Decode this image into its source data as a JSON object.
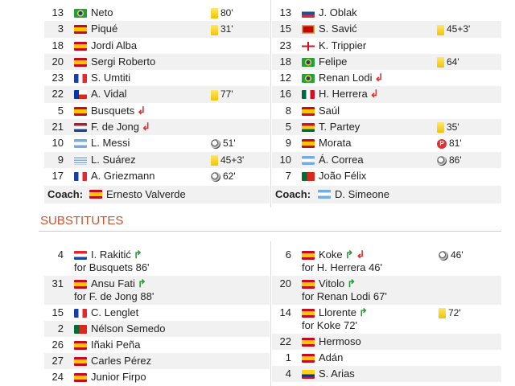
{
  "home": {
    "players": [
      {
        "num": "13",
        "flag": "br",
        "name": "Neto",
        "event": {
          "type": "yellow",
          "minute": "80'"
        }
      },
      {
        "num": "3",
        "flag": "es",
        "name": "Piqué",
        "event": {
          "type": "yellow",
          "minute": "31'"
        }
      },
      {
        "num": "18",
        "flag": "es",
        "name": "Jordi Alba"
      },
      {
        "num": "20",
        "flag": "es",
        "name": "Sergi Roberto"
      },
      {
        "num": "23",
        "flag": "fr",
        "name": "S. Umtiti"
      },
      {
        "num": "22",
        "flag": "cl",
        "name": "A. Vidal",
        "event": {
          "type": "yellow",
          "minute": "77'"
        }
      },
      {
        "num": "5",
        "flag": "es",
        "name": "Busquets",
        "subs": [
          "out"
        ]
      },
      {
        "num": "21",
        "flag": "nl",
        "name": "F. de Jong",
        "subs": [
          "out"
        ]
      },
      {
        "num": "10",
        "flag": "ar",
        "name": "L. Messi",
        "event": {
          "type": "goal",
          "minute": "51'"
        }
      },
      {
        "num": "9",
        "flag": "uy",
        "name": "L. Suárez",
        "event": {
          "type": "yellow",
          "minute": "45+3'"
        }
      },
      {
        "num": "17",
        "flag": "fr",
        "name": "A. Griezmann",
        "event": {
          "type": "goal",
          "minute": "62'"
        }
      }
    ],
    "coach_label": "Coach:",
    "coach": {
      "flag": "es",
      "name": "Ernesto Valverde"
    },
    "substitutes": [
      {
        "num": "4",
        "flag": "hr",
        "name": "I. Rakitić",
        "subs": [
          "in"
        ],
        "for": "for Busquets 86'"
      },
      {
        "num": "31",
        "flag": "es",
        "name": "Ansu Fati",
        "subs": [
          "in"
        ],
        "for": "for F. de Jong 88'"
      },
      {
        "num": "15",
        "flag": "fr",
        "name": "C. Lenglet"
      },
      {
        "num": "2",
        "flag": "pt",
        "name": "Nélson Semedo"
      },
      {
        "num": "26",
        "flag": "es",
        "name": "Iñaki Peña"
      },
      {
        "num": "27",
        "flag": "es",
        "name": "Carles Pérez"
      },
      {
        "num": "24",
        "flag": "es",
        "name": "Junior Firpo"
      }
    ]
  },
  "away": {
    "players": [
      {
        "num": "13",
        "flag": "si",
        "name": "J. Oblak"
      },
      {
        "num": "15",
        "flag": "me",
        "name": "S. Savić",
        "event": {
          "type": "yellow",
          "minute": "45+3'"
        }
      },
      {
        "num": "23",
        "flag": "en",
        "name": "K. Trippier"
      },
      {
        "num": "18",
        "flag": "br",
        "name": "Felipe",
        "event": {
          "type": "yellow",
          "minute": "64'"
        }
      },
      {
        "num": "12",
        "flag": "br",
        "name": "Renan Lodi",
        "subs": [
          "out"
        ]
      },
      {
        "num": "16",
        "flag": "mx",
        "name": "H. Herrera",
        "subs": [
          "out"
        ]
      },
      {
        "num": "8",
        "flag": "es",
        "name": "Saúl"
      },
      {
        "num": "5",
        "flag": "gh",
        "name": "T. Partey",
        "event": {
          "type": "yellow",
          "minute": "35'"
        }
      },
      {
        "num": "9",
        "flag": "es",
        "name": "Morata",
        "event": {
          "type": "penalty",
          "minute": "81'"
        }
      },
      {
        "num": "10",
        "flag": "ar",
        "name": "Á. Correa",
        "event": {
          "type": "goal",
          "minute": "86'"
        }
      },
      {
        "num": "7",
        "flag": "pt",
        "name": "João Félix"
      }
    ],
    "coach_label": "Coach:",
    "coach": {
      "flag": "ar",
      "name": "D. Simeone"
    },
    "substitutes": [
      {
        "num": "6",
        "flag": "es",
        "name": "Koke",
        "subs": [
          "in",
          "out"
        ],
        "for": "for H. Herrera 46'",
        "event": {
          "type": "goal",
          "minute": "46'"
        }
      },
      {
        "num": "20",
        "flag": "es",
        "name": "Vitolo",
        "subs": [
          "in"
        ],
        "for": "for Renan Lodi 67'"
      },
      {
        "num": "14",
        "flag": "es",
        "name": "Llorente",
        "subs": [
          "in"
        ],
        "for": "for Koke 72'",
        "event": {
          "type": "yellow",
          "minute": "72'"
        }
      },
      {
        "num": "22",
        "flag": "es",
        "name": "Hermoso"
      },
      {
        "num": "1",
        "flag": "es",
        "name": "Adán"
      },
      {
        "num": "4",
        "flag": "co",
        "name": "S. Arias"
      }
    ]
  },
  "substitutes_title": "SUBSTITUTES",
  "colors": {
    "accent": "#c8502a",
    "sub_in": "#2b9a3a",
    "sub_out": "#d33333",
    "yellow_card": "#f1c400"
  }
}
